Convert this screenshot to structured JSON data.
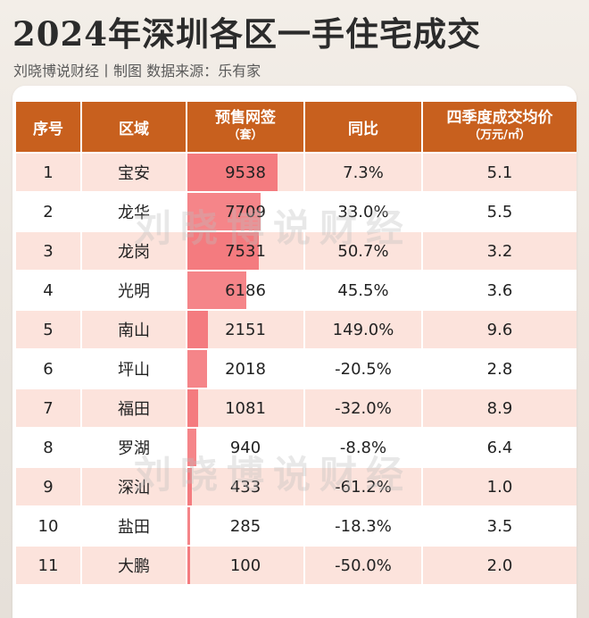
{
  "title": "2024年深圳各区一手住宅成交",
  "subtitle": "刘晓博说财经丨制图    数据来源：乐有家",
  "watermark": "刘晓博说财经",
  "columns": {
    "rank": "序号",
    "district": "区域",
    "sales_line1": "预售网签",
    "sales_line2": "（套）",
    "yoy": "同比",
    "price_line1": "四季度成交均价",
    "price_line2": "（万元/㎡）"
  },
  "colors": {
    "header": "#c8601e",
    "bar": "#f47b7f",
    "stripe": "#fce3dc"
  },
  "chart_data": {
    "type": "table",
    "bar_column": "预售网签（套）",
    "bar_max": 9538,
    "rows": [
      {
        "rank": "1",
        "district": "宝安",
        "sales": 9538,
        "sales_text": "9538",
        "yoy": "7.3%",
        "price": "5.1"
      },
      {
        "rank": "2",
        "district": "龙华",
        "sales": 7709,
        "sales_text": "7709",
        "yoy": "33.0%",
        "price": "5.5"
      },
      {
        "rank": "3",
        "district": "龙岗",
        "sales": 7531,
        "sales_text": "7531",
        "yoy": "50.7%",
        "price": "3.2"
      },
      {
        "rank": "4",
        "district": "光明",
        "sales": 6186,
        "sales_text": "6186",
        "yoy": "45.5%",
        "price": "3.6"
      },
      {
        "rank": "5",
        "district": "南山",
        "sales": 2151,
        "sales_text": "2151",
        "yoy": "149.0%",
        "price": "9.6"
      },
      {
        "rank": "6",
        "district": "坪山",
        "sales": 2018,
        "sales_text": "2018",
        "yoy": "-20.5%",
        "price": "2.8"
      },
      {
        "rank": "7",
        "district": "福田",
        "sales": 1081,
        "sales_text": "1081",
        "yoy": "-32.0%",
        "price": "8.9"
      },
      {
        "rank": "8",
        "district": "罗湖",
        "sales": 940,
        "sales_text": "940",
        "yoy": "-8.8%",
        "price": "6.4"
      },
      {
        "rank": "9",
        "district": "深汕",
        "sales": 433,
        "sales_text": "433",
        "yoy": "-61.2%",
        "price": "1.0"
      },
      {
        "rank": "10",
        "district": "盐田",
        "sales": 285,
        "sales_text": "285",
        "yoy": "-18.3%",
        "price": "3.5"
      },
      {
        "rank": "11",
        "district": "大鹏",
        "sales": 100,
        "sales_text": "100",
        "yoy": "-50.0%",
        "price": "2.0"
      }
    ]
  }
}
